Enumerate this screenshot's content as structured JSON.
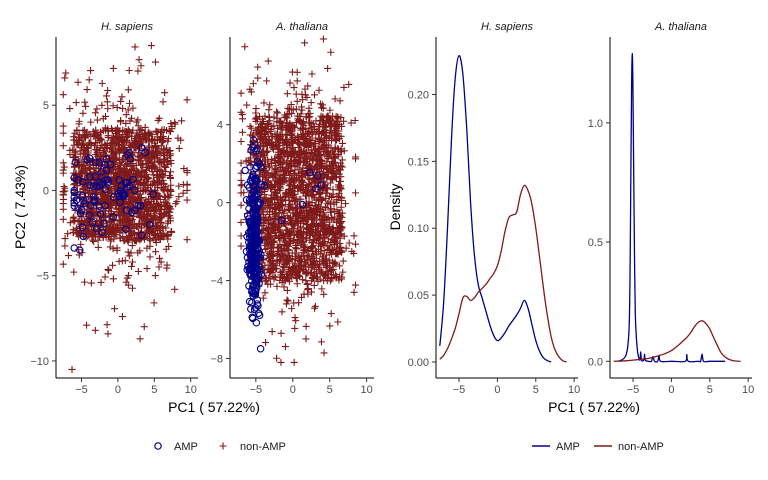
{
  "colors": {
    "amp": "#00008B",
    "non_amp": "#7F1A1A"
  },
  "chart_data": [
    {
      "type": "scatter",
      "panel": "H. sapiens",
      "xlabel": "PC1 ( 57.22%)",
      "ylabel": "PC2 ( 7.43%)",
      "xlim": [
        -8.5,
        11
      ],
      "ylim": [
        -11,
        9
      ],
      "xticks": [
        -5,
        0,
        5,
        10
      ],
      "yticks": [
        -10,
        -5,
        0,
        5
      ],
      "grid": false,
      "legend": "bottom",
      "series": [
        {
          "name": "non-AMP",
          "marker": "plus",
          "x_range": [
            -7.5,
            9.5
          ],
          "y_range": [
            -10.5,
            8.5
          ],
          "notable_points": [
            [
              4.6,
              8.5
            ],
            [
              -6.3,
              -10.5
            ],
            [
              -7.3,
              6.6
            ],
            [
              -4.3,
              -7.9
            ],
            [
              7.8,
              -5.8
            ],
            [
              6.2,
              5.2
            ],
            [
              -6.6,
              4.8
            ]
          ]
        },
        {
          "name": "AMP",
          "marker": "circle",
          "x_range": [
            -6,
            6.5
          ],
          "y_range": [
            -3.5,
            2.5
          ]
        }
      ]
    },
    {
      "type": "scatter",
      "panel": "A. thaliana",
      "xlabel": "PC1 ( 57.22%)",
      "ylabel": "",
      "xlim": [
        -8.5,
        11
      ],
      "ylim": [
        -9,
        8.5
      ],
      "xticks": [
        -5,
        0,
        5,
        10
      ],
      "yticks": [
        -8,
        -4,
        0,
        4
      ],
      "grid": false,
      "legend": "bottom",
      "series": [
        {
          "name": "non-AMP",
          "marker": "plus",
          "x_range": [
            -7,
            8.5
          ],
          "y_range": [
            -8.2,
            8.4
          ],
          "notable_points": [
            [
              -6.5,
              8.0
            ],
            [
              1.6,
              8.2
            ],
            [
              -1.6,
              -8.2
            ],
            [
              8.3,
              -4.6
            ],
            [
              -6.8,
              4.3
            ]
          ]
        },
        {
          "name": "AMP",
          "marker": "circle",
          "x_range": [
            -7,
            4
          ],
          "y_range": [
            -7.5,
            4
          ]
        }
      ]
    },
    {
      "type": "line",
      "panel": "H. sapiens",
      "xlabel": "PC1 ( 57.22%)",
      "ylabel": "Density",
      "xlim": [
        -8,
        10.5
      ],
      "ylim": [
        -0.012,
        0.243
      ],
      "xticks": [
        -5,
        0,
        5,
        10
      ],
      "yticks": [
        0.0,
        0.05,
        0.1,
        0.15,
        0.2
      ],
      "ytick_labels": [
        "0.00",
        "0.05",
        "0.10",
        "0.15",
        "0.20"
      ],
      "grid": false,
      "legend": "bottom",
      "series": [
        {
          "name": "AMP",
          "x": [
            -7.5,
            -7,
            -6.5,
            -6,
            -5.5,
            -5,
            -4.5,
            -4,
            -3.5,
            -3,
            -2.5,
            -2,
            -1.5,
            -1,
            -0.5,
            0,
            0.5,
            1,
            1.5,
            2,
            2.5,
            3,
            3.5,
            4,
            4.5,
            5,
            5.5,
            6,
            6.5,
            7
          ],
          "y": [
            0.012,
            0.045,
            0.1,
            0.165,
            0.212,
            0.229,
            0.215,
            0.175,
            0.12,
            0.08,
            0.058,
            0.048,
            0.038,
            0.028,
            0.02,
            0.016,
            0.018,
            0.022,
            0.027,
            0.031,
            0.035,
            0.04,
            0.046,
            0.04,
            0.028,
            0.016,
            0.008,
            0.003,
            0.001,
            0.0
          ]
        },
        {
          "name": "non-AMP",
          "x": [
            -7.5,
            -7,
            -6.5,
            -6,
            -5.5,
            -5,
            -4.5,
            -4,
            -3.5,
            -3,
            -2.5,
            -2,
            -1.5,
            -1,
            -0.5,
            0,
            0.5,
            1,
            1.5,
            2,
            2.5,
            3,
            3.5,
            4,
            4.5,
            5,
            5.5,
            6,
            6.5,
            7,
            7.5,
            8,
            8.5,
            9
          ],
          "y": [
            0.002,
            0.005,
            0.01,
            0.017,
            0.025,
            0.036,
            0.048,
            0.049,
            0.046,
            0.048,
            0.052,
            0.055,
            0.058,
            0.062,
            0.066,
            0.072,
            0.083,
            0.098,
            0.108,
            0.11,
            0.112,
            0.125,
            0.132,
            0.128,
            0.118,
            0.1,
            0.078,
            0.055,
            0.035,
            0.019,
            0.009,
            0.004,
            0.001,
            0.0
          ]
        }
      ]
    },
    {
      "type": "line",
      "panel": "A. thaliana",
      "xlabel": "PC1 ( 57.22%)",
      "ylabel": "",
      "xlim": [
        -8,
        10.5
      ],
      "ylim": [
        -0.07,
        1.36
      ],
      "xticks": [
        -5,
        0,
        5,
        10
      ],
      "yticks": [
        0.0,
        0.5,
        1.0
      ],
      "ytick_labels": [
        "0.0",
        "0.5",
        "1.0"
      ],
      "grid": false,
      "legend": "bottom",
      "series": [
        {
          "name": "AMP",
          "x": [
            -7,
            -6.5,
            -6,
            -5.7,
            -5.5,
            -5.4,
            -5.3,
            -5.2,
            -5.1,
            -5.0,
            -4.9,
            -4.8,
            -4.7,
            -4.6,
            -4.5,
            -4.4,
            -4.3,
            -4.1,
            -4.0,
            -3.9,
            -3.6,
            -3.5,
            -3.4,
            -3.0,
            -2.6,
            -2.4,
            -2.2,
            -1.8,
            -1.6,
            -1.4,
            0,
            1.8,
            2.0,
            2.2,
            3.5,
            3.8,
            4.0,
            4.2,
            5,
            7
          ],
          "y": [
            0.0,
            0.005,
            0.02,
            0.06,
            0.15,
            0.35,
            0.7,
            1.1,
            1.29,
            1.12,
            0.75,
            0.4,
            0.2,
            0.12,
            0.07,
            0.04,
            0.02,
            0.005,
            0.04,
            0.005,
            0.005,
            0.03,
            0.005,
            0.0,
            0.0,
            0.02,
            0.0,
            0.0,
            0.025,
            0.0,
            0.0,
            0.0,
            0.028,
            0.0,
            0.0,
            0.0,
            0.03,
            0.0,
            0.0,
            0.0
          ]
        },
        {
          "name": "non-AMP",
          "x": [
            -7.5,
            -6,
            -5,
            -4,
            -3,
            -2,
            -1,
            0,
            1,
            1.5,
            2,
            2.5,
            3,
            3.5,
            4,
            4.5,
            5,
            5.5,
            6,
            6.5,
            7,
            7.5,
            8,
            8.5,
            9
          ],
          "y": [
            0.0,
            0.002,
            0.005,
            0.008,
            0.012,
            0.02,
            0.03,
            0.045,
            0.07,
            0.085,
            0.1,
            0.12,
            0.145,
            0.163,
            0.17,
            0.158,
            0.135,
            0.1,
            0.065,
            0.035,
            0.018,
            0.008,
            0.003,
            0.001,
            0.0
          ]
        }
      ]
    }
  ],
  "legends": {
    "scatter": [
      {
        "label": "AMP",
        "marker": "circle"
      },
      {
        "label": "non-AMP",
        "marker": "plus"
      }
    ],
    "density": [
      {
        "label": "AMP",
        "marker": "line"
      },
      {
        "label": "non-AMP",
        "marker": "line"
      }
    ]
  }
}
